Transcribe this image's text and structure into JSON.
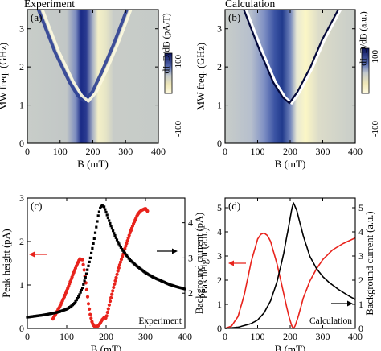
{
  "chart_data": [
    {
      "panel": "(a)",
      "type": "heatmap",
      "title": "Experiment",
      "xlabel": "B (mT)",
      "ylabel": "MW freq. (GHz)",
      "xlim": [
        0,
        400
      ],
      "ylim": [
        0,
        3.5
      ],
      "xticks": [
        "0",
        "100",
        "200",
        "300",
        "400"
      ],
      "yticks": [
        "0",
        "1",
        "2",
        "3"
      ],
      "colorbar": {
        "label": "dI_D/dB (pA/T)",
        "max_label": "100",
        "min_label": "-100"
      },
      "features": {
        "dark_band_center_mT": 168,
        "bright_band_center_mT": 225,
        "resonance_vertex": {
          "x": 180,
          "y": 1.1
        },
        "left_branch": [
          [
            40,
            3.5
          ],
          [
            90,
            2.4
          ],
          [
            135,
            1.6
          ],
          [
            160,
            1.25
          ],
          [
            180,
            1.1
          ]
        ],
        "right_branch": [
          [
            180,
            1.1
          ],
          [
            205,
            1.35
          ],
          [
            235,
            1.9
          ],
          [
            270,
            2.6
          ],
          [
            310,
            3.5
          ]
        ]
      }
    },
    {
      "panel": "(b)",
      "type": "heatmap",
      "title": "Calculation",
      "xlabel": "B (mT)",
      "ylabel": "MW freq. (GHz)",
      "xlim": [
        0,
        400
      ],
      "ylim": [
        0,
        3.5
      ],
      "xticks": [
        "0",
        "100",
        "200",
        "300",
        "400"
      ],
      "yticks": [
        "0",
        "1",
        "2",
        "3"
      ],
      "colorbar": {
        "label": "dI_D/dB (a.u.)",
        "max_label": "100",
        "min_label": "-100"
      },
      "features": {
        "dark_band_center_mT": 168,
        "bright_band_center_mT": 235,
        "resonance_vertex": {
          "x": 200,
          "y": 1.05
        },
        "left_branch": [
          [
            60,
            3.5
          ],
          [
            110,
            2.4
          ],
          [
            150,
            1.6
          ],
          [
            180,
            1.2
          ],
          [
            200,
            1.05
          ]
        ],
        "right_branch": [
          [
            200,
            1.05
          ],
          [
            225,
            1.35
          ],
          [
            265,
            2.0
          ],
          [
            300,
            2.7
          ],
          [
            350,
            3.5
          ]
        ]
      }
    },
    {
      "panel": "(c)",
      "type": "scatter",
      "xlabel": "B (mT)",
      "ylabel": "Peak height (pA)",
      "ylabel_right": "Background current (pA)",
      "xlim": [
        0,
        400
      ],
      "ylim": [
        0,
        3
      ],
      "ylim_right": [
        1,
        4.7
      ],
      "xticks": [
        "0",
        "100",
        "200",
        "300",
        "400"
      ],
      "yticks": [
        "0",
        "1",
        "2",
        "3"
      ],
      "yticks_right": [
        "2",
        "3",
        "4"
      ],
      "annotation": "Experiment",
      "series": [
        {
          "color": "#e8231c",
          "axis": "left",
          "x": [
            65,
            75,
            85,
            95,
            105,
            115,
            125,
            133,
            140,
            145,
            150,
            155,
            160,
            165,
            170,
            175,
            180,
            185,
            190,
            195,
            200,
            205,
            210,
            215,
            220,
            225,
            230,
            235,
            240,
            245,
            250,
            255,
            260,
            265,
            270,
            275,
            280,
            285,
            290,
            295,
            300,
            305
          ],
          "y": [
            0.22,
            0.38,
            0.55,
            0.75,
            0.98,
            1.22,
            1.45,
            1.6,
            1.58,
            1.3,
            0.95,
            0.58,
            0.3,
            0.12,
            0.05,
            0.04,
            0.06,
            0.12,
            0.2,
            0.25,
            0.24,
            0.42,
            0.62,
            0.8,
            0.98,
            1.15,
            1.32,
            1.48,
            1.62,
            1.76,
            1.9,
            2.04,
            2.18,
            2.3,
            2.42,
            2.52,
            2.62,
            2.68,
            2.72,
            2.74,
            2.76,
            2.7
          ]
        },
        {
          "color": "#000000",
          "axis": "right",
          "x": [
            0,
            20,
            40,
            60,
            80,
            100,
            110,
            120,
            130,
            140,
            150,
            160,
            170,
            180,
            185,
            190,
            195,
            200,
            210,
            220,
            230,
            240,
            260,
            280,
            300,
            320,
            340,
            360,
            380,
            400
          ],
          "y": [
            1.32,
            1.35,
            1.38,
            1.42,
            1.47,
            1.55,
            1.62,
            1.72,
            1.9,
            2.15,
            2.55,
            3.0,
            3.55,
            4.2,
            4.42,
            4.5,
            4.45,
            4.3,
            3.98,
            3.7,
            3.45,
            3.25,
            2.95,
            2.75,
            2.58,
            2.45,
            2.35,
            2.25,
            2.18,
            2.12
          ]
        }
      ]
    },
    {
      "panel": "(d)",
      "type": "line",
      "xlabel": "B (mT)",
      "ylabel": "Peak height (a.u.)",
      "ylabel_right": "Background current (a.u.)",
      "xlim": [
        0,
        400
      ],
      "ylim": [
        0,
        5.4
      ],
      "ylim_right": [
        0,
        5.4
      ],
      "xticks": [
        "0",
        "100",
        "200",
        "300",
        "400"
      ],
      "yticks": [
        "0",
        "1",
        "2",
        "3",
        "4",
        "5"
      ],
      "yticks_right": [
        "0",
        "1",
        "2",
        "3",
        "4",
        "5"
      ],
      "annotation": "Calculation",
      "series": [
        {
          "color": "#e8231c",
          "axis": "left",
          "x": [
            0,
            20,
            40,
            60,
            80,
            100,
            110,
            120,
            130,
            140,
            160,
            180,
            195,
            205,
            210,
            215,
            225,
            240,
            260,
            280,
            300,
            330,
            360,
            400
          ],
          "y": [
            0.0,
            0.1,
            0.5,
            1.45,
            2.75,
            3.7,
            3.9,
            3.95,
            3.85,
            3.6,
            2.65,
            1.45,
            0.55,
            0.1,
            0.0,
            0.1,
            0.5,
            1.25,
            1.95,
            2.45,
            2.85,
            3.25,
            3.5,
            3.75
          ]
        },
        {
          "color": "#000000",
          "axis": "right",
          "x": [
            0,
            40,
            80,
            100,
            120,
            140,
            160,
            180,
            195,
            205,
            210,
            220,
            240,
            260,
            280,
            300,
            320,
            350,
            380,
            400
          ],
          "y": [
            0.0,
            0.05,
            0.2,
            0.35,
            0.65,
            1.15,
            1.95,
            3.1,
            4.2,
            4.95,
            5.2,
            4.9,
            3.85,
            3.0,
            2.5,
            2.15,
            1.9,
            1.6,
            1.35,
            1.2
          ]
        }
      ]
    }
  ]
}
